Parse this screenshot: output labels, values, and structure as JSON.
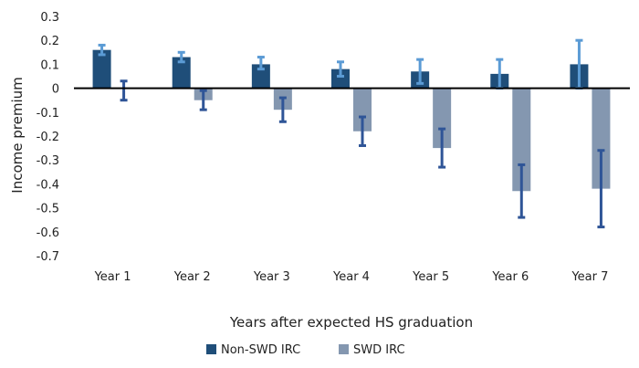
{
  "chart_data": {
    "type": "bar",
    "xlabel": "Years after expected HS graduation",
    "ylabel": "Income premium",
    "ylim": [
      -0.7,
      0.3
    ],
    "yticks": [
      0.3,
      0.2,
      0.1,
      0,
      -0.1,
      -0.2,
      -0.3,
      -0.4,
      -0.5,
      -0.6,
      -0.7
    ],
    "ytick_labels": [
      "0.3",
      "0.2",
      "0.1",
      "0",
      "-0.1",
      "-0.2",
      "-0.3",
      "-0.4",
      "-0.5",
      "-0.6",
      "-0.7"
    ],
    "categories": [
      "Year 1",
      "Year 2",
      "Year 3",
      "Year 4",
      "Year 5",
      "Year 6",
      "Year 7"
    ],
    "grid": false,
    "legend_position": "bottom",
    "series": [
      {
        "name": "Non-SWD IRC",
        "color": "#1f4e79",
        "errorbar_color": "#5b9bd5",
        "values": [
          0.16,
          0.13,
          0.1,
          0.08,
          0.07,
          0.06,
          0.1
        ],
        "error_low": [
          0.14,
          0.11,
          0.08,
          0.05,
          0.02,
          0.0,
          0.0
        ],
        "error_high": [
          0.18,
          0.15,
          0.13,
          0.11,
          0.12,
          0.12,
          0.2
        ]
      },
      {
        "name": "SWD IRC",
        "color": "#8497b0",
        "errorbar_color": "#2f5597",
        "values": [
          0.0,
          -0.05,
          -0.09,
          -0.18,
          -0.25,
          -0.43,
          -0.42
        ],
        "error_low": [
          -0.05,
          -0.09,
          -0.14,
          -0.24,
          -0.33,
          -0.54,
          -0.58
        ],
        "error_high": [
          0.03,
          -0.01,
          -0.04,
          -0.12,
          -0.17,
          -0.32,
          -0.26
        ]
      }
    ]
  }
}
